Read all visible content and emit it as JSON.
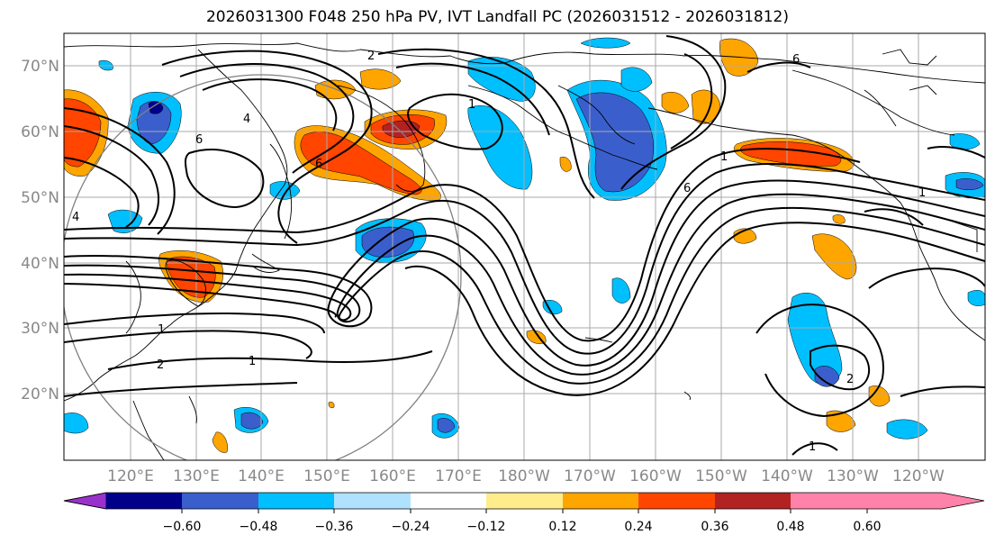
{
  "title": "2026031300 F048 250 hPa PV, IVT Landfall PC (2026031512 - 2026031812)",
  "lat_labels": [
    "70°N",
    "60°N",
    "50°N",
    "40°N",
    "30°N",
    "20°N"
  ],
  "lon_labels": [
    "120°E",
    "130°E",
    "140°E",
    "150°E",
    "160°E",
    "170°E",
    "180°W",
    "170°W",
    "160°W",
    "150°W",
    "140°W",
    "130°W",
    "120°W"
  ],
  "colorbar": {
    "colors": [
      "#9932CC",
      "#00008B",
      "#3A5FCD",
      "#00BFFF",
      "#B0E2FF",
      "#FFFFFF",
      "#FFEC8B",
      "#FFA500",
      "#FF4500",
      "#B22222",
      "#FF82AB"
    ],
    "levels": [
      "−0.60",
      "−0.48",
      "−0.36",
      "−0.24",
      "−0.12",
      "0.12",
      "0.24",
      "0.36",
      "0.48",
      "0.60"
    ]
  },
  "contour_labels": [
    "2",
    "4",
    "6",
    "1",
    "6",
    "1",
    "2",
    "1",
    "1",
    "6",
    "6",
    "4",
    "2",
    "1",
    "1"
  ]
}
